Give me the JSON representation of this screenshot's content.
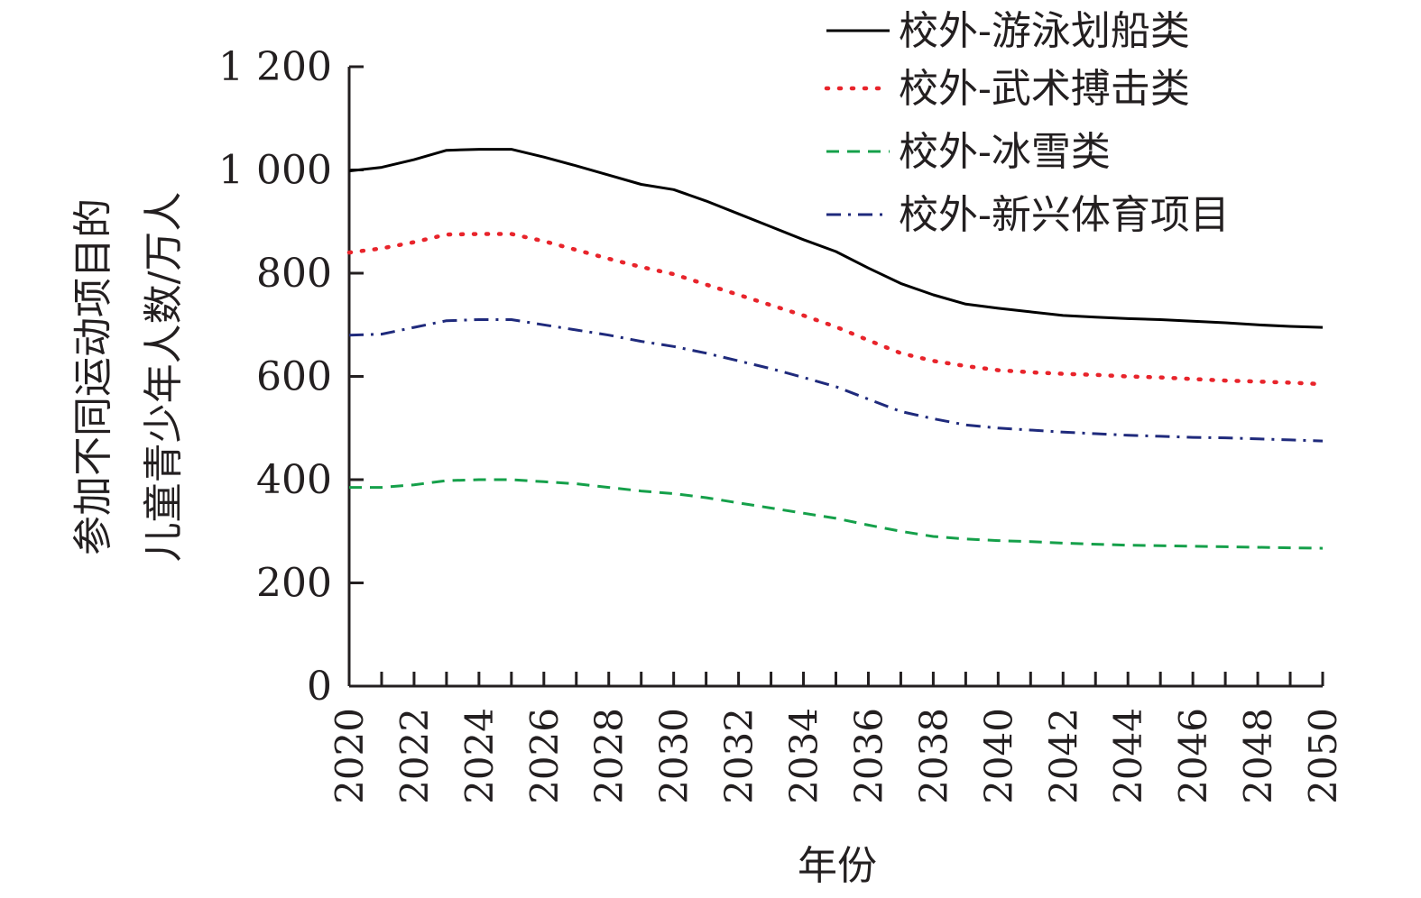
{
  "chart_data": {
    "type": "line",
    "xlabel": "年份",
    "ylabel_lines": [
      "参加不同运动项目的",
      "儿童青少年人数/万人"
    ],
    "xlim": [
      2020,
      2050
    ],
    "ylim": [
      0,
      1200
    ],
    "x_ticks": [
      "2020",
      "2022",
      "2024",
      "2026",
      "2028",
      "2030",
      "2032",
      "2034",
      "2036",
      "2038",
      "2040",
      "2042",
      "2044",
      "2046",
      "2048",
      "2050"
    ],
    "y_ticks": [
      "0",
      "200",
      "400",
      "600",
      "800",
      "1 000",
      "1 200"
    ],
    "grid": false,
    "legend_position": "top-right",
    "x": [
      2020,
      2021,
      2022,
      2023,
      2024,
      2025,
      2026,
      2027,
      2028,
      2029,
      2030,
      2031,
      2032,
      2033,
      2034,
      2035,
      2036,
      2037,
      2038,
      2039,
      2040,
      2041,
      2042,
      2043,
      2044,
      2045,
      2046,
      2047,
      2048,
      2049,
      2050
    ],
    "series": [
      {
        "name": "校外-游泳划船类",
        "color": "#000000",
        "dash": "solid",
        "values": [
          998,
          1005,
          1020,
          1038,
          1040,
          1040,
          1025,
          1008,
          990,
          972,
          962,
          940,
          915,
          890,
          865,
          842,
          810,
          780,
          758,
          740,
          732,
          725,
          718,
          715,
          712,
          710,
          707,
          704,
          700,
          697,
          695
        ]
      },
      {
        "name": "校外-武术搏击类",
        "color": "#e8242b",
        "dash": "dotted",
        "values": [
          840,
          848,
          860,
          875,
          876,
          876,
          862,
          845,
          828,
          812,
          798,
          778,
          758,
          738,
          718,
          696,
          670,
          645,
          630,
          620,
          612,
          608,
          605,
          603,
          600,
          598,
          595,
          592,
          590,
          588,
          585
        ]
      },
      {
        "name": "校外-冰雪类",
        "color": "#15a04a",
        "dash": "dashed",
        "values": [
          385,
          385,
          390,
          398,
          400,
          400,
          396,
          392,
          385,
          378,
          373,
          365,
          355,
          345,
          335,
          325,
          312,
          300,
          290,
          285,
          282,
          280,
          277,
          275,
          273,
          272,
          271,
          270,
          269,
          268,
          267
        ]
      },
      {
        "name": "校外-新兴体育项目",
        "color": "#1f2a7c",
        "dash": "dashdot",
        "values": [
          680,
          682,
          695,
          708,
          710,
          710,
          700,
          690,
          680,
          668,
          658,
          645,
          630,
          615,
          598,
          580,
          556,
          532,
          518,
          506,
          500,
          496,
          492,
          489,
          486,
          484,
          482,
          481,
          479,
          477,
          475
        ]
      }
    ]
  }
}
